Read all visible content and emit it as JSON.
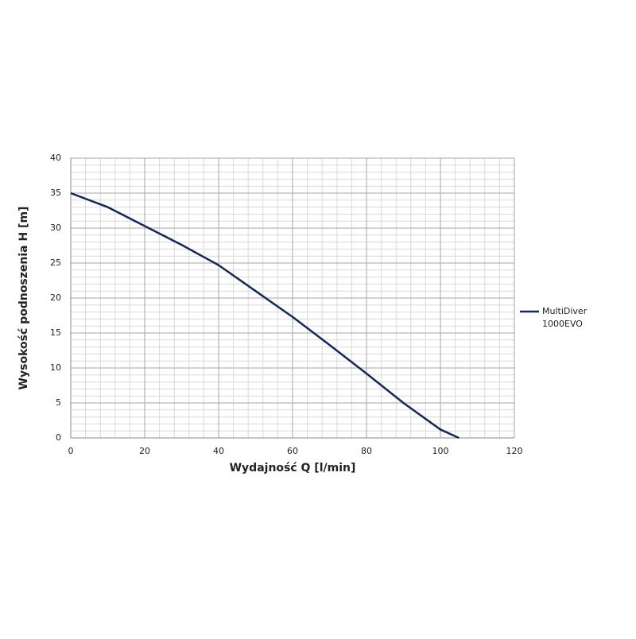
{
  "chart_data": {
    "type": "line",
    "x_label": "Wydajność Q [l/min]",
    "y_label": "Wysokość podnoszenia H [m]",
    "series": [
      {
        "name": "MultiDiver 1000EVO",
        "color": "#14285a",
        "x": [
          0,
          10,
          20,
          30,
          40,
          50,
          60,
          70,
          80,
          90,
          100,
          105
        ],
        "values": [
          35,
          33,
          30.3,
          27.6,
          24.7,
          21,
          17.3,
          13.3,
          9.2,
          5,
          1.2,
          0
        ]
      }
    ],
    "xlim": [
      0,
      120
    ],
    "xticks": [
      0,
      20,
      40,
      60,
      80,
      100,
      120
    ],
    "ylim": [
      0,
      40
    ],
    "yticks": [
      0,
      5,
      10,
      15,
      20,
      25,
      30,
      35,
      40
    ],
    "grid": true,
    "minor_grid": {
      "x": 4,
      "y": 1
    },
    "legend": "right"
  }
}
